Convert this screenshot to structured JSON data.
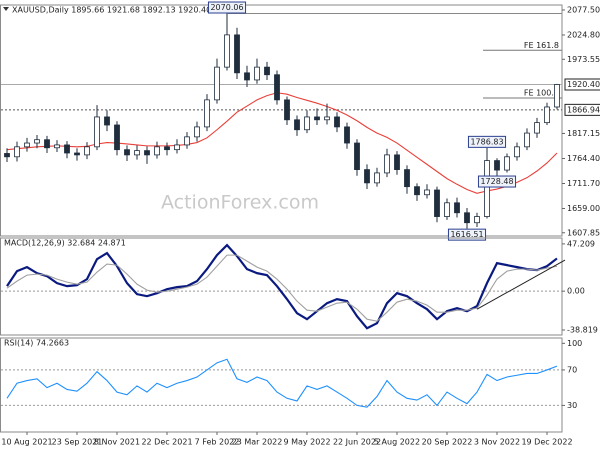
{
  "chart_data": [
    {
      "type": "candlestick",
      "title": "XAUUSD,Daily  1895.66 1921.68 1892.13 1920.40",
      "watermark": "ActionForex.com",
      "color": "#1f2d3d",
      "categories": [
        null,
        null,
        "10 Aug 2021",
        null,
        null,
        null,
        null,
        "23 Sep 2021",
        null,
        null,
        null,
        "8 Nov 2021",
        null,
        null,
        null,
        null,
        "22 Dec 2021",
        null,
        null,
        null,
        null,
        "7 Feb 2022",
        null,
        null,
        null,
        "23 Mar 2022",
        null,
        null,
        null,
        null,
        "9 May 2022",
        null,
        null,
        null,
        null,
        "22 Jun 2022",
        null,
        null,
        null,
        "5 Aug 2022",
        null,
        null,
        null,
        null,
        "20 Sep 2022",
        null,
        null,
        null,
        null,
        "3 Nov 2022",
        null,
        null,
        null,
        null,
        "19 Dec 2022",
        null
      ],
      "open": [
        1775,
        1768,
        1789,
        1797,
        1804,
        1787,
        1793,
        1776,
        1772,
        1789,
        1852,
        1835,
        1783,
        1772,
        1781,
        1772,
        1789,
        1783,
        1793,
        1810,
        1831,
        1888,
        1957,
        2025,
        1945,
        1930,
        1957,
        1941,
        1888,
        1846,
        1825,
        1852,
        1846,
        1852,
        1831,
        1797,
        1741,
        1713,
        1734,
        1772,
        1741,
        1705,
        1688,
        1698,
        1642,
        1671,
        1650,
        1629,
        1642,
        1760,
        1740,
        1768,
        1789,
        1818,
        1840,
        1873
      ],
      "high": [
        1786,
        1800,
        1808,
        1814,
        1812,
        1803,
        1801,
        1786,
        1799,
        1877,
        1866,
        1843,
        1792,
        1792,
        1790,
        1800,
        1798,
        1805,
        1820,
        1842,
        1900,
        1975,
        2070.06,
        2040,
        1960,
        1975,
        1968,
        1950,
        1895,
        1855,
        1866,
        1870,
        1880,
        1862,
        1840,
        1805,
        1752,
        1745,
        1785,
        1780,
        1750,
        1712,
        1710,
        1705,
        1680,
        1682,
        1660,
        1650,
        1786.83,
        1765,
        1775,
        1798,
        1828,
        1850,
        1882,
        1921.68
      ],
      "low": [
        1757,
        1758,
        1779,
        1786,
        1776,
        1778,
        1765,
        1760,
        1763,
        1782,
        1822,
        1771,
        1759,
        1762,
        1753,
        1764,
        1771,
        1775,
        1785,
        1800,
        1822,
        1880,
        1950,
        1932,
        1915,
        1922,
        1930,
        1878,
        1835,
        1812,
        1818,
        1835,
        1836,
        1820,
        1785,
        1728,
        1700,
        1705,
        1725,
        1730,
        1690,
        1675,
        1680,
        1630,
        1635,
        1640,
        1616.51,
        1620,
        1638,
        1728.48,
        1735,
        1760,
        1782,
        1808,
        1835,
        1868
      ],
      "close": [
        1768,
        1789,
        1797,
        1804,
        1787,
        1793,
        1776,
        1772,
        1789,
        1852,
        1835,
        1783,
        1772,
        1781,
        1772,
        1789,
        1783,
        1793,
        1810,
        1831,
        1888,
        1957,
        2025,
        1945,
        1930,
        1957,
        1941,
        1888,
        1846,
        1825,
        1852,
        1846,
        1852,
        1831,
        1797,
        1741,
        1713,
        1734,
        1772,
        1741,
        1705,
        1688,
        1698,
        1642,
        1671,
        1650,
        1629,
        1642,
        1760,
        1740,
        1768,
        1789,
        1818,
        1840,
        1873,
        1920.4
      ],
      "series": [
        {
          "color": "#e8403a",
          "values": [
            1783,
            1785,
            1787,
            1789,
            1790,
            1791,
            1790,
            1789,
            1790,
            1795,
            1798,
            1797,
            1795,
            1793,
            1791,
            1791,
            1791,
            1792,
            1794,
            1798,
            1808,
            1825,
            1843,
            1862,
            1875,
            1888,
            1897,
            1903,
            1900,
            1893,
            1887,
            1881,
            1874,
            1866,
            1856,
            1844,
            1830,
            1818,
            1809,
            1797,
            1782,
            1767,
            1752,
            1737,
            1722,
            1710,
            1699,
            1691,
            1696,
            1700,
            1706,
            1714,
            1724,
            1738,
            1755,
            1776
          ]
        }
      ],
      "ylim": [
        1601,
        2088
      ],
      "yticks": [
        {
          "value": 2077.5,
          "label": "2077.50"
        },
        {
          "value": 2024.8,
          "label": "2024.80"
        },
        1973.55,
        1817.15,
        {
          "value": 1764.4,
          "label": "1764.40"
        },
        {
          "value": 1711.7,
          "label": "1711.70"
        },
        {
          "value": 1659,
          "label": "1659.00"
        },
        1607.85
      ],
      "pivots": [
        2070.06,
        1786.83,
        1728.48,
        1616.51
      ],
      "fe_levels": [
        {
          "label": "FE 161.8",
          "value": 1992.6
        },
        {
          "label": "FE 100.0",
          "value": 1892
        }
      ],
      "last_price": {
        "value": 1920.4,
        "label": "1920.40"
      },
      "level": 1866.94
    },
    {
      "type": "line",
      "title": "MACD(12,26,9) 32.684 24.871",
      "series": [
        {
          "color": "#0b1a80",
          "values": [
            5,
            20,
            24,
            18,
            15,
            8,
            5,
            6,
            12,
            32,
            38,
            25,
            8,
            -3,
            -5,
            -2,
            2,
            4,
            5,
            10,
            22,
            36,
            46,
            35,
            22,
            18,
            16,
            5,
            -8,
            -22,
            -28,
            -20,
            -12,
            -8,
            -10,
            -25,
            -37,
            -32,
            -12,
            -2,
            -5,
            -12,
            -18,
            -28,
            -20,
            -17,
            -20,
            -15,
            8,
            28,
            26,
            24,
            22,
            21,
            25,
            32.684
          ]
        },
        {
          "color": "#a0a0a0",
          "values": [
            3,
            10,
            16,
            17,
            16,
            12,
            9,
            7,
            9,
            19,
            27,
            26,
            17,
            7,
            1,
            -1,
            0,
            2,
            4,
            7,
            14,
            25,
            36,
            36,
            30,
            24,
            20,
            12,
            2,
            -10,
            -19,
            -20,
            -16,
            -12,
            -11,
            -18,
            -28,
            -30,
            -21,
            -11,
            -8,
            -10,
            -14,
            -21,
            -21,
            -19,
            -19,
            -17,
            -4,
            12,
            20,
            22,
            22,
            21,
            23,
            24.871
          ]
        }
      ],
      "trendline": {
        "color": "#222222",
        "values": [
          -18,
          31
        ]
      },
      "ylim": [
        -43.8,
        53.1
      ],
      "yticks": [
        47.209,
        {
          "value": 0,
          "label": "0.00"
        },
        -38.819
      ],
      "levels": [
        0
      ]
    },
    {
      "type": "line",
      "title": "RSI(14) 74.2663",
      "series": [
        {
          "color": "#1e90ff",
          "values": [
            38,
            55,
            58,
            60,
            50,
            55,
            48,
            46,
            55,
            68,
            58,
            45,
            42,
            52,
            45,
            55,
            50,
            55,
            58,
            62,
            70,
            78,
            82,
            60,
            56,
            62,
            58,
            45,
            38,
            35,
            52,
            48,
            52,
            45,
            38,
            30,
            28,
            40,
            58,
            45,
            38,
            36,
            42,
            30,
            45,
            38,
            32,
            45,
            65,
            58,
            62,
            64,
            66,
            66,
            70,
            74.2663
          ]
        }
      ],
      "ylim": [
        0,
        106
      ],
      "yticks": [
        100,
        70,
        30
      ],
      "levels": [
        70,
        30
      ]
    }
  ]
}
